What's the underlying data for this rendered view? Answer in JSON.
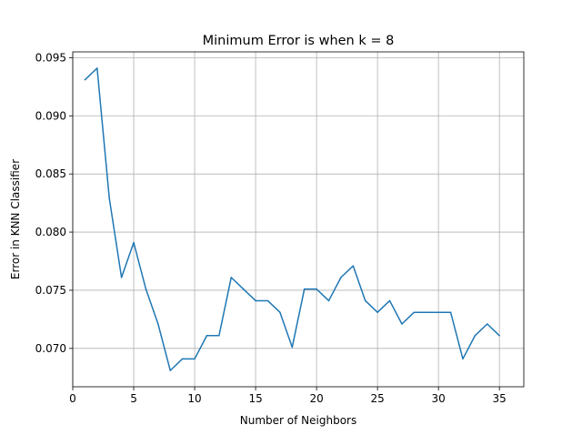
{
  "chart_data": {
    "type": "line",
    "title": "Minimum Error is when k = 8",
    "xlabel": "Number of Neighbors",
    "ylabel": "Error in KNN Classifier",
    "xlim": [
      0,
      37
    ],
    "ylim": [
      0.0667,
      0.0955
    ],
    "grid": true,
    "legend": "none",
    "color": "#1f77b4",
    "x_ticks": [
      0,
      5,
      10,
      15,
      20,
      25,
      30,
      35
    ],
    "x_tick_labels": [
      "0",
      "5",
      "10",
      "15",
      "20",
      "25",
      "30",
      "35"
    ],
    "y_ticks": [
      0.07,
      0.075,
      0.08,
      0.085,
      0.09,
      0.095
    ],
    "y_tick_labels": [
      "0.070",
      "0.075",
      "0.080",
      "0.085",
      "0.090",
      "0.095"
    ],
    "x": [
      1,
      2,
      3,
      4,
      5,
      6,
      7,
      8,
      9,
      10,
      11,
      12,
      13,
      14,
      15,
      16,
      17,
      18,
      19,
      20,
      21,
      22,
      23,
      24,
      25,
      26,
      27,
      28,
      29,
      30,
      31,
      32,
      33,
      34,
      35
    ],
    "y": [
      0.0931,
      0.0941,
      0.0829,
      0.0761,
      0.0791,
      0.0751,
      0.0721,
      0.0681,
      0.0691,
      0.0691,
      0.0711,
      0.0711,
      0.0761,
      0.0751,
      0.0741,
      0.0741,
      0.0731,
      0.0701,
      0.0751,
      0.0751,
      0.0741,
      0.0761,
      0.0771,
      0.0741,
      0.0731,
      0.0741,
      0.0721,
      0.0731,
      0.0731,
      0.0731,
      0.0731,
      0.0691,
      0.0711,
      0.0721,
      0.0711
    ]
  }
}
